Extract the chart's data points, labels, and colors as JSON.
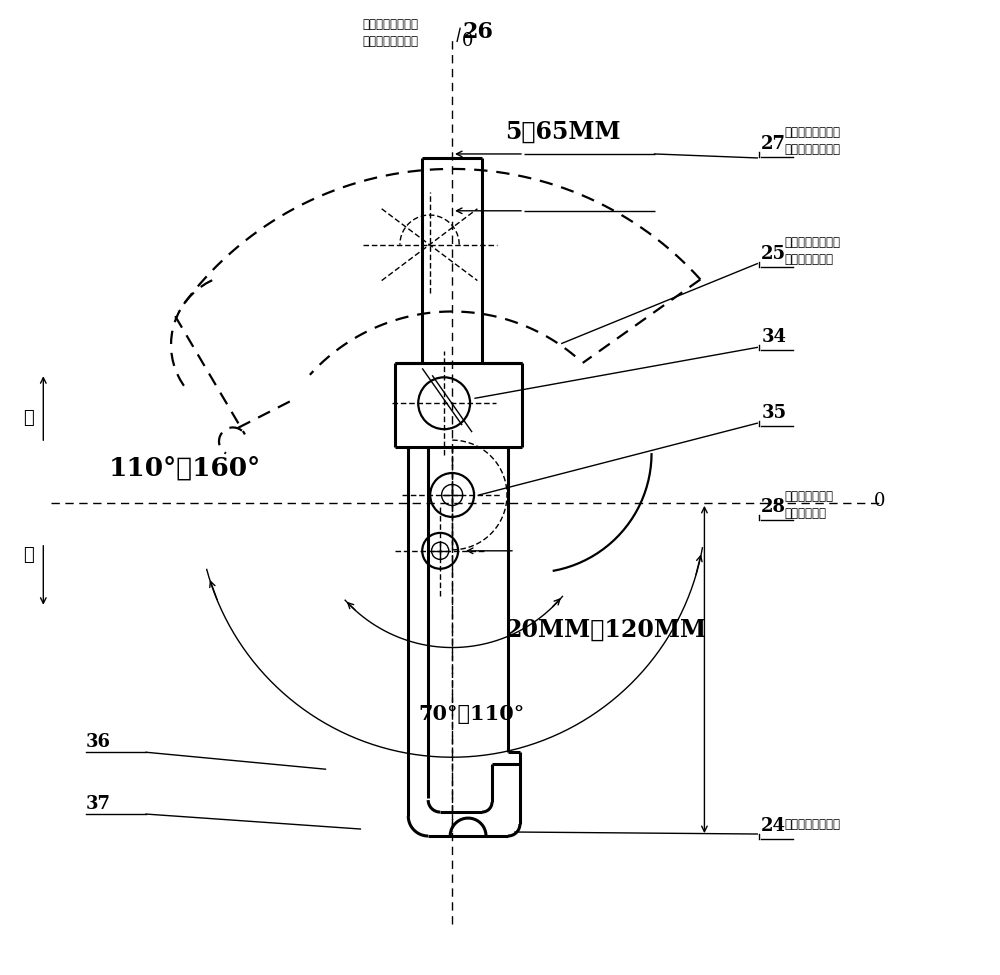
{
  "bg_color": "#ffffff",
  "lc": "#000000",
  "ann": {
    "label_26": "26",
    "label_26_cn": "（销式开合定位拉\n割刀座垂直轴线）",
    "label_27": "27",
    "label_27_cn": "（销式开合定位拉\n割刀座底垂直线）",
    "label_25": "25",
    "label_25_cn": "（销式开合定位拉\n割刀座斜轴线）",
    "label_34": "34",
    "label_35": "35",
    "label_28": "28",
    "label_28_cn": "（活动滚轮刀座\n水平中轴线）",
    "label_24": "24",
    "label_24_cn": "（刀刃水平轴线）",
    "label_36": "36",
    "label_37": "37",
    "dim_top": "5－65MM",
    "dim_bottom": "20MM－120MM",
    "angle_top": "110°－160°",
    "angle_bottom": "70°－110°",
    "open_text": "开",
    "close_text": "合",
    "zero_top": "0",
    "zero_mid": "0"
  }
}
